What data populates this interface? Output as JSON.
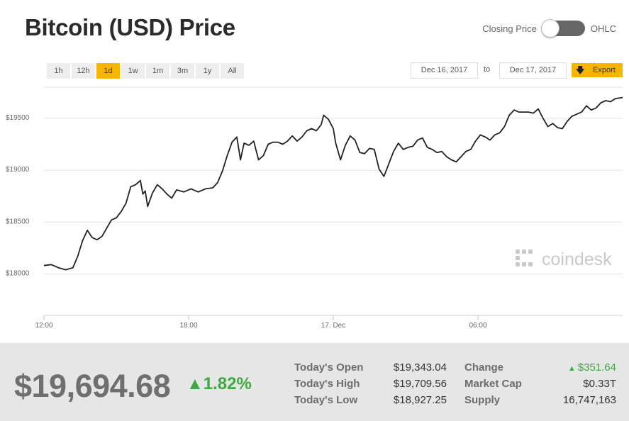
{
  "header": {
    "title": "Bitcoin (USD) Price",
    "toggle_left": "Closing Price",
    "toggle_right": "OHLC"
  },
  "ranges": [
    "1h",
    "12h",
    "1d",
    "1w",
    "1m",
    "3m",
    "1y",
    "All"
  ],
  "active_range": "1d",
  "date_from": "Dec 16, 2017",
  "date_sep": "to",
  "date_to": "Dec 17, 2017",
  "export_label": "Export",
  "watermark": "coindesk",
  "colors": {
    "accent": "#f7b500",
    "up": "#3ea843",
    "line": "#222222",
    "footer_bg": "#e6e6e6"
  },
  "chart_data": {
    "type": "line",
    "xlabel": "",
    "ylabel": "",
    "ylim": [
      17600,
      19800
    ],
    "y_ticks": [
      18000,
      18500,
      19000,
      19500
    ],
    "y_tick_labels": [
      "$18000",
      "$18500",
      "$19000",
      "$19500"
    ],
    "x_ticks": [
      {
        "hour": 0,
        "label": "12:00"
      },
      {
        "hour": 6,
        "label": "18:00"
      },
      {
        "hour": 12,
        "label": "17. Dec"
      },
      {
        "hour": 18,
        "label": "06:00"
      }
    ],
    "grid": true,
    "series": [
      {
        "points": [
          [
            0.0,
            18080
          ],
          [
            0.3,
            18090
          ],
          [
            0.6,
            18060
          ],
          [
            0.9,
            18040
          ],
          [
            1.2,
            18060
          ],
          [
            1.4,
            18170
          ],
          [
            1.6,
            18320
          ],
          [
            1.8,
            18420
          ],
          [
            2.0,
            18350
          ],
          [
            2.2,
            18330
          ],
          [
            2.4,
            18360
          ],
          [
            2.6,
            18440
          ],
          [
            2.8,
            18520
          ],
          [
            3.0,
            18540
          ],
          [
            3.2,
            18600
          ],
          [
            3.4,
            18680
          ],
          [
            3.6,
            18840
          ],
          [
            3.8,
            18860
          ],
          [
            4.0,
            18900
          ],
          [
            4.1,
            18770
          ],
          [
            4.2,
            18800
          ],
          [
            4.3,
            18650
          ],
          [
            4.5,
            18780
          ],
          [
            4.7,
            18860
          ],
          [
            4.9,
            18820
          ],
          [
            5.1,
            18770
          ],
          [
            5.3,
            18730
          ],
          [
            5.5,
            18810
          ],
          [
            5.8,
            18790
          ],
          [
            6.1,
            18820
          ],
          [
            6.4,
            18790
          ],
          [
            6.7,
            18820
          ],
          [
            7.0,
            18830
          ],
          [
            7.2,
            18880
          ],
          [
            7.4,
            18990
          ],
          [
            7.6,
            19140
          ],
          [
            7.8,
            19270
          ],
          [
            8.0,
            19320
          ],
          [
            8.15,
            19100
          ],
          [
            8.3,
            19260
          ],
          [
            8.5,
            19240
          ],
          [
            8.7,
            19280
          ],
          [
            8.9,
            19100
          ],
          [
            9.1,
            19140
          ],
          [
            9.3,
            19250
          ],
          [
            9.5,
            19270
          ],
          [
            9.7,
            19270
          ],
          [
            9.9,
            19250
          ],
          [
            10.1,
            19280
          ],
          [
            10.3,
            19330
          ],
          [
            10.5,
            19280
          ],
          [
            10.7,
            19320
          ],
          [
            10.9,
            19380
          ],
          [
            11.1,
            19400
          ],
          [
            11.3,
            19380
          ],
          [
            11.5,
            19440
          ],
          [
            11.6,
            19530
          ],
          [
            11.8,
            19490
          ],
          [
            12.0,
            19400
          ],
          [
            12.1,
            19260
          ],
          [
            12.3,
            19100
          ],
          [
            12.5,
            19240
          ],
          [
            12.7,
            19330
          ],
          [
            12.9,
            19290
          ],
          [
            13.1,
            19170
          ],
          [
            13.3,
            19160
          ],
          [
            13.5,
            19210
          ],
          [
            13.7,
            19200
          ],
          [
            13.9,
            19010
          ],
          [
            14.1,
            18940
          ],
          [
            14.3,
            19060
          ],
          [
            14.5,
            19180
          ],
          [
            14.7,
            19260
          ],
          [
            14.9,
            19200
          ],
          [
            15.1,
            19220
          ],
          [
            15.3,
            19230
          ],
          [
            15.5,
            19290
          ],
          [
            15.7,
            19310
          ],
          [
            15.9,
            19220
          ],
          [
            16.1,
            19200
          ],
          [
            16.3,
            19170
          ],
          [
            16.5,
            19180
          ],
          [
            16.7,
            19130
          ],
          [
            16.9,
            19100
          ],
          [
            17.1,
            19080
          ],
          [
            17.3,
            19130
          ],
          [
            17.5,
            19180
          ],
          [
            17.7,
            19200
          ],
          [
            17.9,
            19280
          ],
          [
            18.1,
            19340
          ],
          [
            18.3,
            19320
          ],
          [
            18.5,
            19290
          ],
          [
            18.7,
            19340
          ],
          [
            18.9,
            19360
          ],
          [
            19.1,
            19420
          ],
          [
            19.3,
            19530
          ],
          [
            19.5,
            19580
          ],
          [
            19.7,
            19560
          ],
          [
            19.9,
            19560
          ],
          [
            20.1,
            19560
          ],
          [
            20.3,
            19550
          ],
          [
            20.5,
            19590
          ],
          [
            20.7,
            19500
          ],
          [
            20.9,
            19420
          ],
          [
            21.1,
            19450
          ],
          [
            21.3,
            19410
          ],
          [
            21.5,
            19400
          ],
          [
            21.7,
            19470
          ],
          [
            21.9,
            19520
          ],
          [
            22.1,
            19540
          ],
          [
            22.3,
            19560
          ],
          [
            22.5,
            19620
          ],
          [
            22.7,
            19580
          ],
          [
            22.9,
            19600
          ],
          [
            23.1,
            19650
          ],
          [
            23.3,
            19670
          ],
          [
            23.5,
            19660
          ],
          [
            23.7,
            19690
          ],
          [
            24.0,
            19700
          ]
        ]
      }
    ]
  },
  "footer": {
    "price": "$19,694.68",
    "change_pct": "1.82%",
    "stats": {
      "open_label": "Today's Open",
      "open_value": "$19,343.04",
      "high_label": "Today's High",
      "high_value": "$19,709.56",
      "low_label": "Today's Low",
      "low_value": "$18,927.25",
      "change_label": "Change",
      "change_value": "$351.64",
      "mcap_label": "Market Cap",
      "mcap_value": "$0.33T",
      "supply_label": "Supply",
      "supply_value": "16,747,163"
    }
  }
}
